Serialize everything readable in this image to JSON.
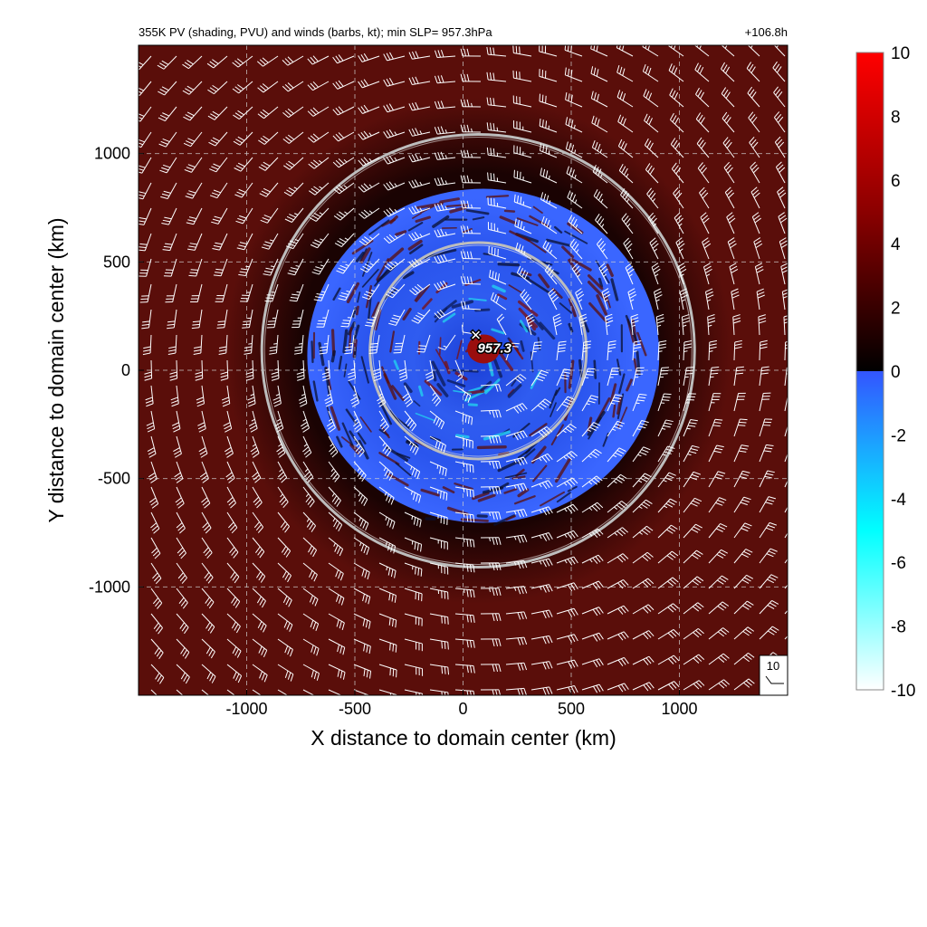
{
  "chart_data": {
    "type": "heatmap",
    "title": "355K PV (shading, PVU) and winds (barbs, kt); min SLP=  957.3hPa",
    "time_label": "+106.8h",
    "xlabel": "X distance to domain center (km)",
    "ylabel": "Y distance to domain center (km)",
    "xlim": [
      -1500,
      1500
    ],
    "ylim": [
      -1500,
      1500
    ],
    "x_ticks": [
      -1000,
      -500,
      0,
      500,
      1000
    ],
    "y_ticks": [
      -1000,
      -500,
      0,
      500,
      1000
    ],
    "x_tick_labels": [
      "-1000",
      "-500",
      "0",
      "500",
      "1000"
    ],
    "y_tick_labels": [
      "-1000",
      "-500",
      "0",
      "500",
      "1000"
    ],
    "grid": true,
    "colorbar": {
      "label": "",
      "range": [
        -10,
        10
      ],
      "ticks": [
        10,
        8,
        6,
        4,
        2,
        0,
        -2,
        -4,
        -6,
        -8,
        -10
      ],
      "tick_labels": [
        "10",
        "8",
        "6",
        "4",
        "2",
        "0",
        "-2",
        "-4",
        "-6",
        "-8",
        "-10"
      ],
      "positive_colors": [
        "#000000",
        "#8b0000",
        "#ff0000"
      ],
      "negative_colors": [
        "#3355ff",
        "#00ffff",
        "#ffffff"
      ]
    },
    "field": {
      "background_pv": 2.5,
      "negative_region_center_km": [
        60,
        50
      ],
      "negative_region_radius_km": 830,
      "core_pv": 6
    },
    "center_marker": {
      "x": 70,
      "y": 90,
      "symbol": "✕",
      "label": "957.3"
    },
    "rings": [
      {
        "center": [
          70,
          90
        ],
        "radius": 500
      },
      {
        "center": [
          70,
          90
        ],
        "radius": 1000
      }
    ],
    "wind_reference": {
      "label": "10",
      "unit": "kt"
    },
    "wind_field": {
      "rotation": "cyclonic",
      "inner_max_kt": 40,
      "outer_kt": 30
    }
  },
  "colors": {
    "background": "#5a0e0a",
    "dark_ring": "#1a0303",
    "ring_stroke": "#bdbdbd",
    "barb": "#ffffff",
    "grid": "#cfcfcf"
  }
}
